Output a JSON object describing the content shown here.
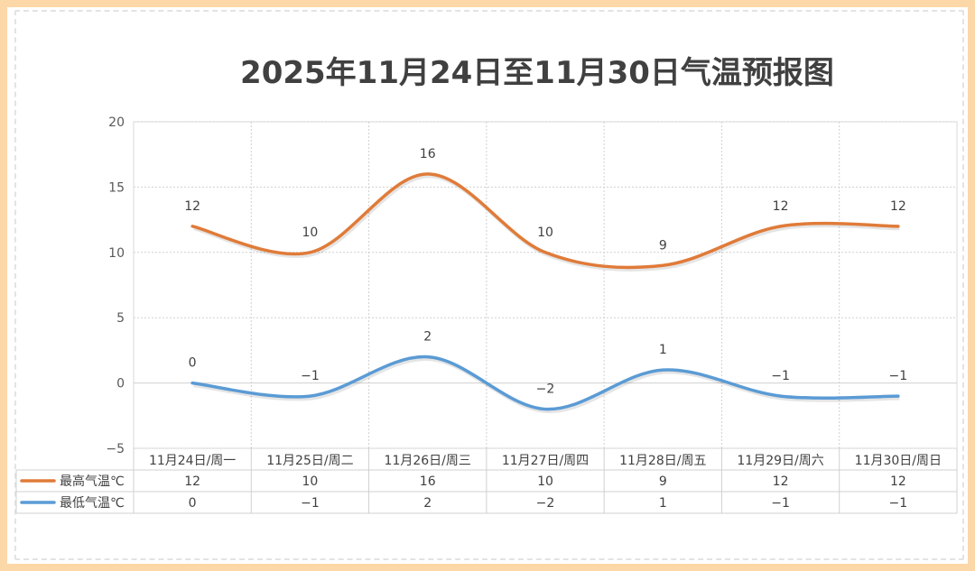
{
  "chart_data": {
    "type": "line",
    "title": "2025年11月24日至11月30日气温预报图",
    "categories": [
      "11月24日/周一",
      "11月25日/周二",
      "11月26日/周三",
      "11月27日/周四",
      "11月28日/周五",
      "11月29日/周六",
      "11月30日/周日"
    ],
    "series": [
      {
        "name": "最高气温℃",
        "color": "#e07b39",
        "values": [
          12,
          10,
          16,
          10,
          9,
          12,
          12
        ],
        "labels": [
          "12",
          "10",
          "16",
          "10",
          "9",
          "12",
          "12"
        ]
      },
      {
        "name": "最低气温℃",
        "color": "#5b9bd5",
        "values": [
          0,
          -1,
          2,
          -2,
          1,
          -1,
          -1
        ],
        "labels": [
          "0",
          "−1",
          "2",
          "−2",
          "1",
          "−1",
          "−1"
        ]
      }
    ],
    "ylim": [
      -5,
      20
    ],
    "yticks": [
      "−5",
      "0",
      "5",
      "10",
      "15",
      "20"
    ],
    "ytick_values": [
      -5,
      0,
      5,
      10,
      15,
      20
    ],
    "grid": true,
    "smooth": true,
    "data_table": true
  }
}
